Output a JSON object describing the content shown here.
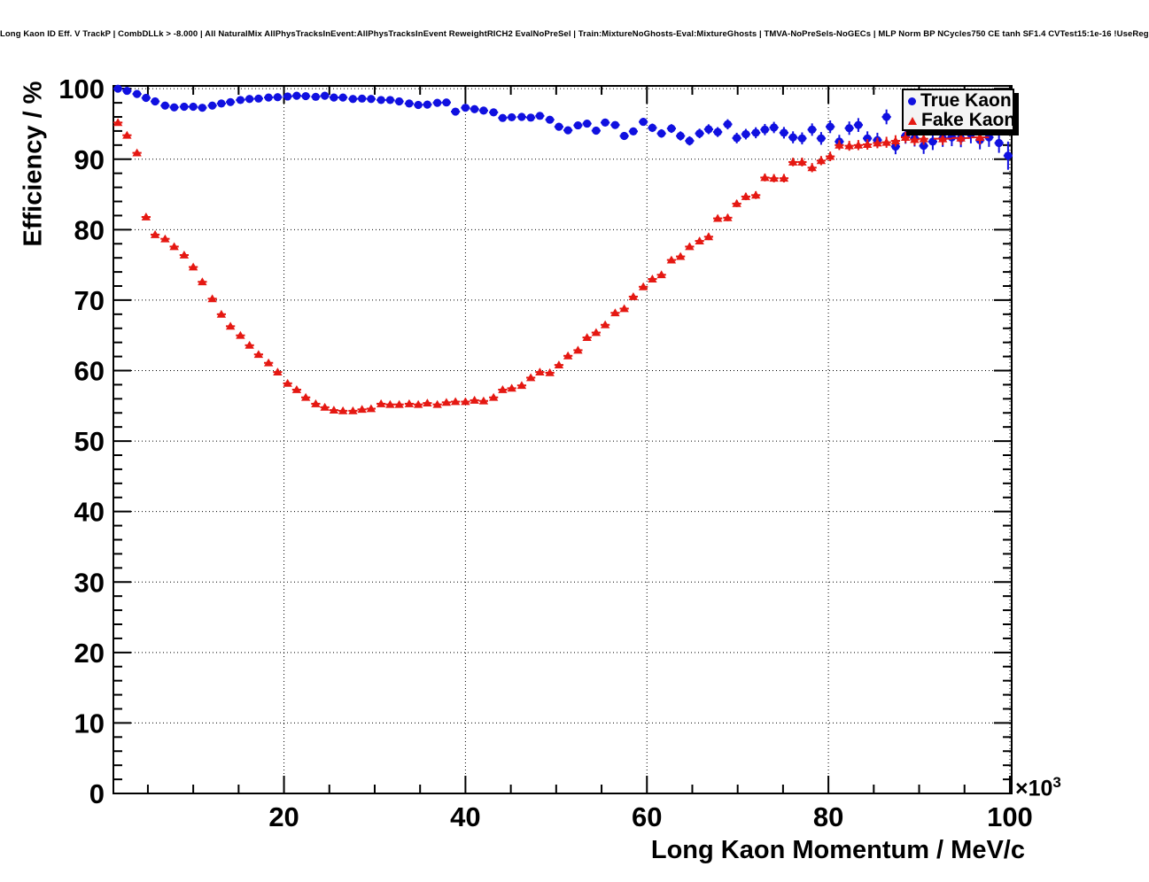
{
  "title": {
    "text": "Long Kaon ID Eff. V TrackP | CombDLLk > -8.000 | All NaturalMix AllPhysTracksInEvent:AllPhysTracksInEvent ReweightRICH2 EvalNoPreSel | Train:MixtureNoGhosts-Eval:MixtureGhosts | TMVA-NoPreSels-NoGECs | MLP Norm BP NCycles750 CE tanh SF1.4 CVTest15:1e-16 !UseReg"
  },
  "chart_data": {
    "type": "scatter",
    "xlabel": "Long Kaon Momentum / MeV/c",
    "ylabel": "Efficiency / %",
    "x_scale_note": "×10",
    "x_scale_exp": "3",
    "x_units_implied": "10^3 MeV/c",
    "xlim": [
      1.2,
      100.2
    ],
    "ylim": [
      0,
      100.4
    ],
    "x_ticks": [
      20,
      40,
      60,
      80,
      100
    ],
    "x_minor_step": 5,
    "y_ticks": [
      0,
      10,
      20,
      30,
      40,
      50,
      60,
      70,
      80,
      90,
      100
    ],
    "y_minor_step": 2,
    "grid": true,
    "grid_style": "dotted",
    "frame_color": "#000000",
    "legend": {
      "position": "top-right",
      "entries": [
        {
          "label": "True Kaon",
          "marker": "circle",
          "color": "#1010e0"
        },
        {
          "label": "Fake Kaon",
          "marker": "triangle",
          "color": "#e51812"
        }
      ]
    },
    "series": [
      {
        "name": "True Kaon",
        "marker": "circle",
        "color": "#1010e0",
        "points": [
          [
            1.7,
            100.0,
            0.08
          ],
          [
            2.7,
            99.7,
            0.1
          ],
          [
            3.8,
            99.25,
            0.1
          ],
          [
            4.8,
            98.7,
            0.12
          ],
          [
            5.8,
            98.2,
            0.12
          ],
          [
            6.9,
            97.6,
            0.12
          ],
          [
            7.9,
            97.35,
            0.12
          ],
          [
            9.0,
            97.45,
            0.12
          ],
          [
            10.0,
            97.45,
            0.12
          ],
          [
            11.0,
            97.3,
            0.12
          ],
          [
            12.1,
            97.6,
            0.12
          ],
          [
            13.1,
            97.9,
            0.12
          ],
          [
            14.1,
            98.1,
            0.12
          ],
          [
            15.2,
            98.4,
            0.12
          ],
          [
            16.2,
            98.55,
            0.12
          ],
          [
            17.2,
            98.6,
            0.12
          ],
          [
            18.3,
            98.75,
            0.12
          ],
          [
            19.3,
            98.8,
            0.12
          ],
          [
            20.4,
            98.9,
            0.12
          ],
          [
            21.4,
            99.0,
            0.12
          ],
          [
            22.4,
            98.95,
            0.12
          ],
          [
            23.5,
            98.85,
            0.12
          ],
          [
            24.5,
            99.0,
            0.12
          ],
          [
            25.5,
            98.75,
            0.12
          ],
          [
            26.5,
            98.75,
            0.15
          ],
          [
            27.6,
            98.55,
            0.15
          ],
          [
            28.6,
            98.6,
            0.15
          ],
          [
            29.6,
            98.55,
            0.15
          ],
          [
            30.7,
            98.4,
            0.15
          ],
          [
            31.7,
            98.4,
            0.15
          ],
          [
            32.7,
            98.2,
            0.18
          ],
          [
            33.8,
            97.9,
            0.18
          ],
          [
            34.8,
            97.7,
            0.2
          ],
          [
            35.8,
            97.75,
            0.2
          ],
          [
            36.9,
            98.0,
            0.2
          ],
          [
            37.9,
            98.05,
            0.2
          ],
          [
            38.9,
            96.75,
            0.22
          ],
          [
            40.0,
            97.3,
            0.22
          ],
          [
            41.0,
            97.1,
            0.25
          ],
          [
            42.0,
            96.9,
            0.25
          ],
          [
            43.1,
            96.65,
            0.28
          ],
          [
            44.1,
            95.85,
            0.3
          ],
          [
            45.1,
            95.95,
            0.3
          ],
          [
            46.2,
            96.0,
            0.32
          ],
          [
            47.2,
            95.9,
            0.35
          ],
          [
            48.2,
            96.15,
            0.35
          ],
          [
            49.3,
            95.6,
            0.38
          ],
          [
            50.3,
            94.6,
            0.4
          ],
          [
            51.3,
            94.1,
            0.42
          ],
          [
            52.4,
            94.8,
            0.45
          ],
          [
            53.4,
            95.05,
            0.45
          ],
          [
            54.4,
            94.05,
            0.48
          ],
          [
            55.4,
            95.2,
            0.5
          ],
          [
            56.5,
            94.85,
            0.5
          ],
          [
            57.5,
            93.3,
            0.55
          ],
          [
            58.5,
            93.95,
            0.55
          ],
          [
            59.6,
            95.3,
            0.55
          ],
          [
            60.6,
            94.45,
            0.6
          ],
          [
            61.6,
            93.65,
            0.6
          ],
          [
            62.7,
            94.35,
            0.62
          ],
          [
            63.7,
            93.3,
            0.65
          ],
          [
            64.7,
            92.6,
            0.65
          ],
          [
            65.8,
            93.65,
            0.68
          ],
          [
            66.8,
            94.25,
            0.7
          ],
          [
            67.8,
            93.85,
            0.7
          ],
          [
            68.9,
            94.95,
            0.72
          ],
          [
            69.9,
            93.0,
            0.75
          ],
          [
            70.9,
            93.55,
            0.75
          ],
          [
            72.0,
            93.75,
            0.78
          ],
          [
            73.0,
            94.2,
            0.8
          ],
          [
            74.0,
            94.5,
            0.8
          ],
          [
            75.1,
            93.75,
            0.82
          ],
          [
            76.1,
            93.1,
            0.85
          ],
          [
            77.1,
            92.95,
            0.85
          ],
          [
            78.2,
            94.2,
            0.88
          ],
          [
            79.2,
            92.95,
            0.9
          ],
          [
            80.2,
            94.6,
            0.9
          ],
          [
            81.2,
            92.5,
            0.95
          ],
          [
            82.3,
            94.4,
            0.95
          ],
          [
            83.3,
            94.85,
            0.98
          ],
          [
            84.3,
            92.95,
            1.0
          ],
          [
            85.4,
            92.7,
            1.05
          ],
          [
            86.4,
            96.0,
            1.05
          ],
          [
            87.4,
            91.8,
            1.1
          ],
          [
            88.5,
            93.3,
            1.1
          ],
          [
            89.5,
            92.95,
            1.15
          ],
          [
            90.5,
            91.9,
            1.15
          ],
          [
            91.5,
            92.5,
            1.2
          ],
          [
            92.6,
            92.95,
            1.2
          ],
          [
            93.6,
            93.1,
            1.25
          ],
          [
            94.6,
            92.95,
            1.25
          ],
          [
            95.7,
            93.55,
            1.3
          ],
          [
            96.7,
            92.7,
            1.3
          ],
          [
            97.7,
            93.1,
            1.35
          ],
          [
            98.8,
            92.3,
            1.4
          ],
          [
            99.8,
            90.5,
            2.0
          ]
        ]
      },
      {
        "name": "Fake Kaon",
        "marker": "triangle",
        "color": "#e51812",
        "points": [
          [
            1.7,
            95.2,
            0.1
          ],
          [
            2.7,
            93.4,
            0.12
          ],
          [
            3.8,
            90.9,
            0.15
          ],
          [
            4.8,
            81.8,
            0.18
          ],
          [
            5.8,
            79.3,
            0.18
          ],
          [
            6.9,
            78.7,
            0.18
          ],
          [
            7.9,
            77.6,
            0.18
          ],
          [
            9.0,
            76.4,
            0.18
          ],
          [
            10.0,
            74.7,
            0.18
          ],
          [
            11.0,
            72.6,
            0.18
          ],
          [
            12.1,
            70.2,
            0.18
          ],
          [
            13.1,
            68.0,
            0.18
          ],
          [
            14.1,
            66.3,
            0.18
          ],
          [
            15.2,
            65.0,
            0.18
          ],
          [
            16.2,
            63.6,
            0.18
          ],
          [
            17.2,
            62.3,
            0.18
          ],
          [
            18.3,
            61.1,
            0.18
          ],
          [
            19.3,
            59.8,
            0.18
          ],
          [
            20.4,
            58.2,
            0.18
          ],
          [
            21.4,
            57.3,
            0.18
          ],
          [
            22.4,
            56.2,
            0.18
          ],
          [
            23.5,
            55.3,
            0.18
          ],
          [
            24.5,
            54.8,
            0.18
          ],
          [
            25.5,
            54.4,
            0.18
          ],
          [
            26.5,
            54.3,
            0.18
          ],
          [
            27.6,
            54.3,
            0.18
          ],
          [
            28.6,
            54.5,
            0.18
          ],
          [
            29.6,
            54.6,
            0.18
          ],
          [
            30.7,
            55.3,
            0.18
          ],
          [
            31.7,
            55.2,
            0.18
          ],
          [
            32.7,
            55.2,
            0.18
          ],
          [
            33.8,
            55.3,
            0.2
          ],
          [
            34.8,
            55.2,
            0.2
          ],
          [
            35.8,
            55.4,
            0.2
          ],
          [
            36.9,
            55.2,
            0.2
          ],
          [
            37.9,
            55.5,
            0.2
          ],
          [
            38.9,
            55.6,
            0.2
          ],
          [
            40.0,
            55.6,
            0.2
          ],
          [
            41.0,
            55.8,
            0.22
          ],
          [
            42.0,
            55.7,
            0.22
          ],
          [
            43.1,
            56.2,
            0.22
          ],
          [
            44.1,
            57.3,
            0.25
          ],
          [
            45.1,
            57.5,
            0.25
          ],
          [
            46.2,
            57.9,
            0.25
          ],
          [
            47.2,
            59.0,
            0.25
          ],
          [
            48.2,
            59.8,
            0.28
          ],
          [
            49.3,
            59.7,
            0.28
          ],
          [
            50.3,
            60.8,
            0.3
          ],
          [
            51.3,
            62.1,
            0.3
          ],
          [
            52.4,
            62.9,
            0.3
          ],
          [
            53.4,
            64.7,
            0.32
          ],
          [
            54.4,
            65.4,
            0.32
          ],
          [
            55.4,
            66.5,
            0.35
          ],
          [
            56.5,
            68.2,
            0.35
          ],
          [
            57.5,
            68.8,
            0.35
          ],
          [
            58.5,
            70.5,
            0.38
          ],
          [
            59.6,
            71.9,
            0.38
          ],
          [
            60.6,
            73.0,
            0.4
          ],
          [
            61.6,
            73.6,
            0.4
          ],
          [
            62.7,
            75.7,
            0.42
          ],
          [
            63.7,
            76.2,
            0.42
          ],
          [
            64.7,
            77.6,
            0.45
          ],
          [
            65.8,
            78.4,
            0.45
          ],
          [
            66.8,
            79.0,
            0.48
          ],
          [
            67.8,
            81.6,
            0.48
          ],
          [
            68.9,
            81.7,
            0.5
          ],
          [
            69.9,
            83.7,
            0.5
          ],
          [
            70.9,
            84.7,
            0.52
          ],
          [
            72.0,
            84.9,
            0.55
          ],
          [
            73.0,
            87.4,
            0.55
          ],
          [
            74.0,
            87.3,
            0.58
          ],
          [
            75.1,
            87.3,
            0.6
          ],
          [
            76.1,
            89.6,
            0.6
          ],
          [
            77.1,
            89.6,
            0.62
          ],
          [
            78.2,
            88.8,
            0.65
          ],
          [
            79.2,
            89.8,
            0.65
          ],
          [
            80.2,
            90.4,
            0.68
          ],
          [
            81.2,
            92.0,
            0.7
          ],
          [
            82.3,
            91.9,
            0.7
          ],
          [
            83.3,
            92.0,
            0.72
          ],
          [
            84.3,
            92.1,
            0.75
          ],
          [
            85.4,
            92.3,
            0.75
          ],
          [
            86.4,
            92.4,
            0.78
          ],
          [
            87.4,
            92.6,
            0.8
          ],
          [
            88.5,
            93.1,
            0.8
          ],
          [
            89.5,
            92.8,
            0.85
          ],
          [
            90.5,
            92.9,
            0.85
          ],
          [
            92.6,
            92.9,
            0.9,
            1.0
          ],
          [
            94.6,
            93.0,
            0.95,
            1.0
          ],
          [
            96.7,
            93.1,
            1.0,
            1.0
          ]
        ]
      }
    ]
  }
}
